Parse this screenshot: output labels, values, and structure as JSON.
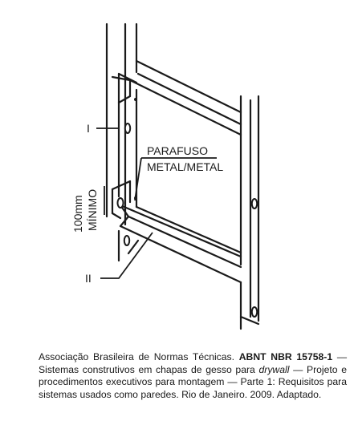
{
  "figure": {
    "labels": {
      "part_one": "I",
      "part_two": "II",
      "screw_line1": "PARAFUSO",
      "screw_line2": "METAL/METAL",
      "dimension_value": "100mm",
      "dimension_word": "MÍNIMO"
    }
  },
  "caption": {
    "author": "Associação Brasileira de Normas Técnicas.",
    "standard": "ABNT NBR 15758-1",
    "title_part1": "— Sistemas construtivos em chapas de gesso para",
    "title_italic": "drywall",
    "title_part2": "— Projeto e procedimentos executivos para montagem — Parte 1: Requisitos para sistemas usados como paredes.",
    "place_year": "Rio de Janeiro. 2009.",
    "note": "Adaptado."
  }
}
